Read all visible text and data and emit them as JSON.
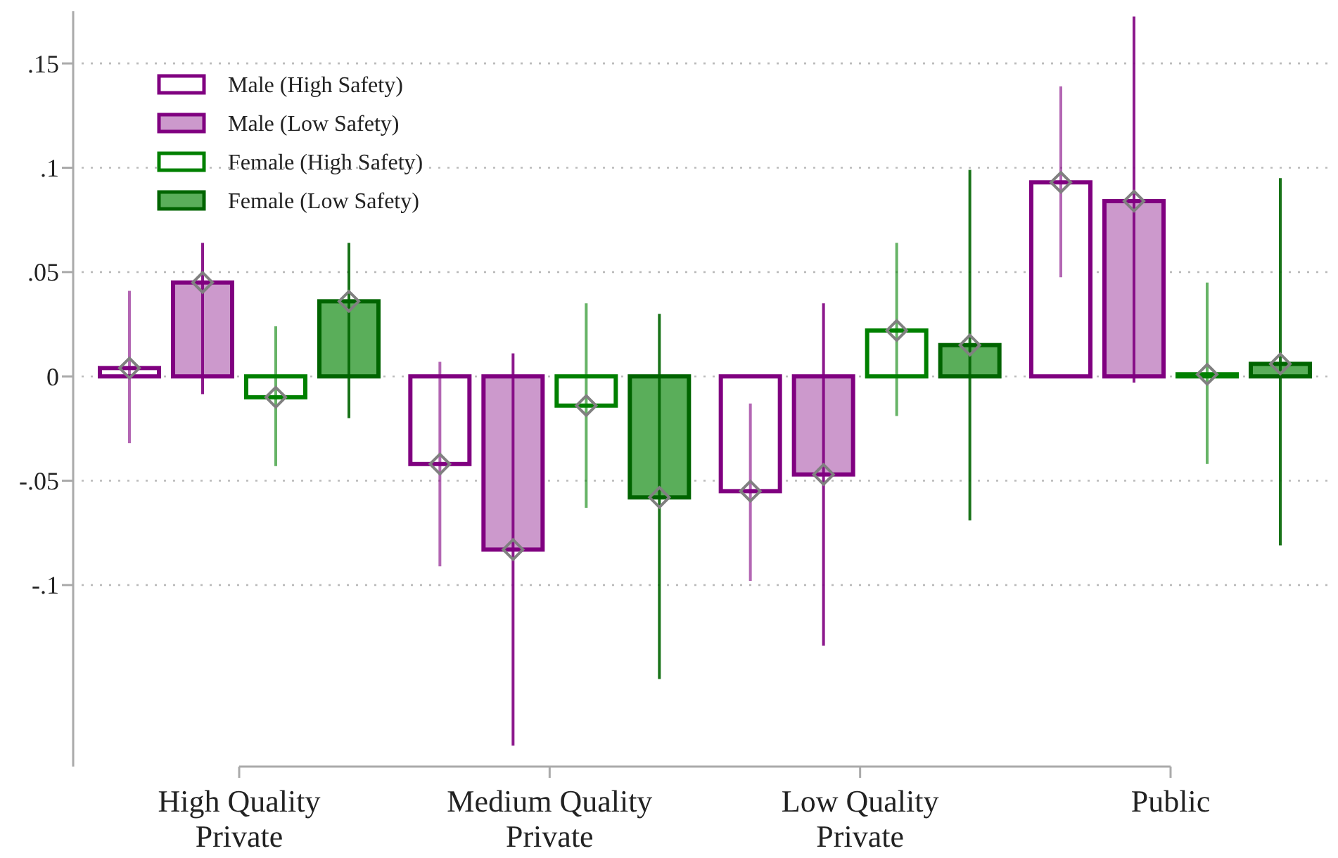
{
  "chart_data": {
    "type": "bar",
    "categories": [
      "High Quality Private",
      "Medium Quality Private",
      "Low Quality Private",
      "Public"
    ],
    "series": [
      {
        "name": "Male (High Safety)",
        "color": "#800080",
        "values": [
          0.004,
          -0.042,
          -0.055,
          0.093
        ],
        "errors": [
          [
            -0.032,
            0.041
          ],
          [
            -0.091,
            0.007
          ],
          [
            -0.098,
            -0.013
          ],
          [
            0.0475,
            0.139
          ]
        ]
      },
      {
        "name": "Male (Low Safety)",
        "color": "#800080",
        "colors": [
          "#cc99cc",
          "#cc99cc",
          "#cc99cc",
          "#cc99cc"
        ],
        "values": [
          0.045,
          -0.083,
          -0.047,
          0.084
        ],
        "errors": [
          [
            -0.0085,
            0.064
          ],
          [
            -0.177,
            0.011
          ],
          [
            -0.129,
            0.035
          ],
          [
            -0.003,
            0.1725
          ]
        ]
      },
      {
        "name": "Female (High Safety)",
        "color": "#008000",
        "values": [
          -0.01,
          -0.014,
          0.022,
          0.001
        ],
        "errors": [
          [
            -0.043,
            0.024
          ],
          [
            -0.063,
            0.035
          ],
          [
            -0.019,
            0.064
          ],
          [
            -0.042,
            0.045
          ]
        ]
      },
      {
        "name": "Female (Low Safety)",
        "color": "#006400",
        "colors": [
          "#5aae5a",
          "#5aae5a",
          "#5aae5a",
          "#5aae5a"
        ],
        "values": [
          0.036,
          -0.058,
          0.015,
          0.006
        ],
        "errors": [
          [
            -0.02,
            0.064
          ],
          [
            -0.145,
            0.03
          ],
          [
            -0.069,
            0.099
          ],
          [
            -0.081,
            0.095
          ]
        ]
      }
    ],
    "ylim": [
      -0.187,
      0.175
    ],
    "yticks": [
      {
        "value": -0.1,
        "label": "-.1"
      },
      {
        "value": -0.05,
        "label": "-.05"
      },
      0,
      {
        "value": 0.05,
        "label": ".05"
      },
      {
        "value": 0.1,
        "label": ".1"
      },
      {
        "value": 0.15,
        "label": ".15"
      }
    ],
    "grid": "y",
    "legend": "top left",
    "marker": "diamond"
  }
}
